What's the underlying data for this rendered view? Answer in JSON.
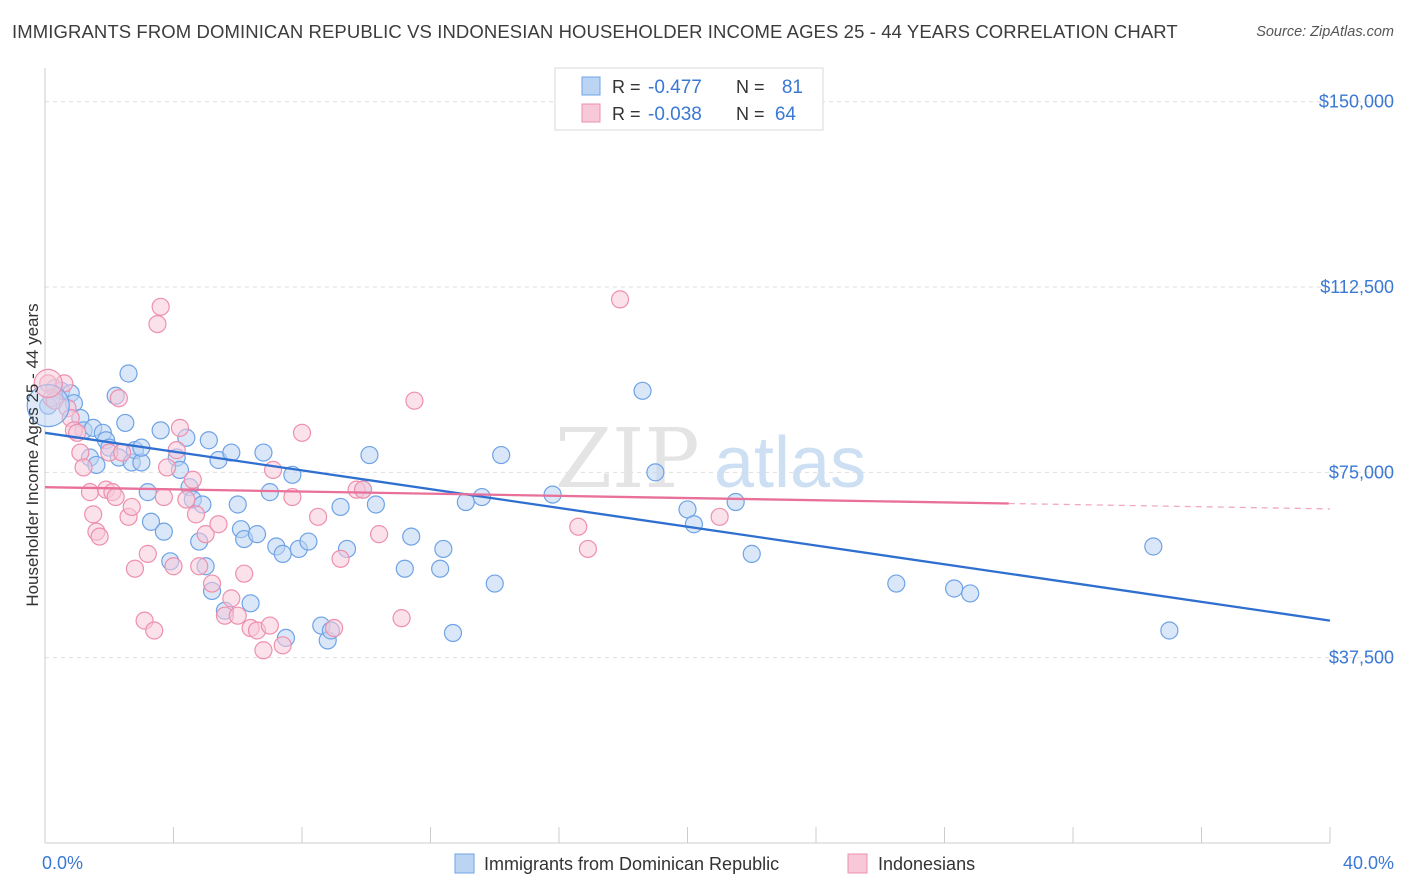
{
  "title": "IMMIGRANTS FROM DOMINICAN REPUBLIC VS INDONESIAN HOUSEHOLDER INCOME AGES 25 - 44 YEARS CORRELATION CHART",
  "source": "Source: ZipAtlas.com",
  "watermark": {
    "zip": "ZIP",
    "atlas": "atlas"
  },
  "colors": {
    "blue": "#6fa3e6",
    "blue_fill": "#bcd4f3",
    "blue_line": "#2f6fd0",
    "pink": "#ee90ad",
    "pink_fill": "#f7c9d8",
    "pink_line": "#e8709a",
    "tick_text": "#3a78d4"
  },
  "stats_box": {
    "rows": [
      {
        "r_label": "R =",
        "r_value": "-0.477",
        "n_label": "N =",
        "n_value": "81"
      },
      {
        "r_label": "R =",
        "r_value": "-0.038",
        "n_label": "N =",
        "n_value": "64"
      }
    ]
  },
  "chart_data": {
    "type": "scatter",
    "title": "IMMIGRANTS FROM DOMINICAN REPUBLIC VS INDONESIAN HOUSEHOLDER INCOME AGES 25 - 44 YEARS CORRELATION CHART",
    "xlabel": "",
    "ylabel": "Householder Income Ages 25 - 44 years",
    "xlim": [
      0,
      40
    ],
    "ylim": [
      0,
      155000
    ],
    "x_tick_labels": [
      "0.0%",
      "40.0%"
    ],
    "y_ticks": [
      37500,
      75000,
      112500,
      150000
    ],
    "y_tick_labels": [
      "$37,500",
      "$75,000",
      "$112,500",
      "$150,000"
    ],
    "grid": true,
    "legend_position": "bottom-center",
    "series": [
      {
        "name": "Immigrants from Dominican Republic",
        "color": "#6fa3e6",
        "trend": {
          "x": [
            0,
            40
          ],
          "y": [
            83000,
            45000
          ]
        },
        "points": [
          [
            0.1,
            88500
          ],
          [
            0.3,
            92000
          ],
          [
            0.5,
            91500
          ],
          [
            0.8,
            91000
          ],
          [
            0.9,
            89000
          ],
          [
            1.1,
            86000
          ],
          [
            1.2,
            83500
          ],
          [
            1.4,
            78000
          ],
          [
            1.5,
            84000
          ],
          [
            1.6,
            76500
          ],
          [
            1.8,
            83000
          ],
          [
            1.9,
            81500
          ],
          [
            2.0,
            80000
          ],
          [
            2.2,
            90500
          ],
          [
            2.3,
            78000
          ],
          [
            2.5,
            85000
          ],
          [
            2.6,
            95000
          ],
          [
            2.7,
            77000
          ],
          [
            2.8,
            79500
          ],
          [
            3.0,
            77000
          ],
          [
            3.0,
            80000
          ],
          [
            3.2,
            71000
          ],
          [
            3.3,
            65000
          ],
          [
            3.6,
            83500
          ],
          [
            3.7,
            63000
          ],
          [
            3.9,
            57000
          ],
          [
            4.1,
            78000
          ],
          [
            4.2,
            75500
          ],
          [
            4.4,
            82000
          ],
          [
            4.5,
            72000
          ],
          [
            4.6,
            69500
          ],
          [
            4.8,
            61000
          ],
          [
            4.9,
            68500
          ],
          [
            5.0,
            56000
          ],
          [
            5.1,
            81500
          ],
          [
            5.2,
            51000
          ],
          [
            5.4,
            77500
          ],
          [
            5.6,
            47000
          ],
          [
            5.8,
            79000
          ],
          [
            6.0,
            68500
          ],
          [
            6.1,
            63500
          ],
          [
            6.2,
            61500
          ],
          [
            6.4,
            48500
          ],
          [
            6.6,
            62500
          ],
          [
            6.8,
            79000
          ],
          [
            7.0,
            71000
          ],
          [
            7.2,
            60000
          ],
          [
            7.4,
            58500
          ],
          [
            7.5,
            41500
          ],
          [
            7.7,
            74500
          ],
          [
            7.9,
            59500
          ],
          [
            8.2,
            61000
          ],
          [
            8.6,
            44000
          ],
          [
            8.8,
            41000
          ],
          [
            8.9,
            43000
          ],
          [
            9.2,
            68000
          ],
          [
            9.4,
            59500
          ],
          [
            9.9,
            71500
          ],
          [
            10.1,
            78500
          ],
          [
            10.3,
            68500
          ],
          [
            11.2,
            55500
          ],
          [
            11.4,
            62000
          ],
          [
            12.3,
            55500
          ],
          [
            12.4,
            59500
          ],
          [
            12.7,
            42500
          ],
          [
            13.1,
            69000
          ],
          [
            13.6,
            70000
          ],
          [
            14.0,
            52500
          ],
          [
            14.2,
            78500
          ],
          [
            15.8,
            70500
          ],
          [
            18.6,
            91500
          ],
          [
            19.0,
            75000
          ],
          [
            20.0,
            67500
          ],
          [
            20.2,
            64500
          ],
          [
            21.5,
            69000
          ],
          [
            22.0,
            58500
          ],
          [
            26.5,
            52500
          ],
          [
            28.3,
            51500
          ],
          [
            28.8,
            50500
          ],
          [
            34.5,
            60000
          ],
          [
            35.0,
            43000
          ]
        ]
      },
      {
        "name": "Indonesians",
        "color": "#ee90ad",
        "trend": {
          "x": [
            0,
            30
          ],
          "y": [
            72000,
            68700
          ],
          "dash_to": [
            40,
            67600
          ]
        },
        "points": [
          [
            0.1,
            93000
          ],
          [
            0.2,
            90000
          ],
          [
            0.3,
            89500
          ],
          [
            0.6,
            93000
          ],
          [
            0.7,
            88000
          ],
          [
            0.8,
            86000
          ],
          [
            0.9,
            83500
          ],
          [
            1.0,
            83000
          ],
          [
            1.1,
            79000
          ],
          [
            1.2,
            76000
          ],
          [
            1.4,
            71000
          ],
          [
            1.5,
            66500
          ],
          [
            1.6,
            63000
          ],
          [
            1.7,
            62000
          ],
          [
            1.9,
            71500
          ],
          [
            2.0,
            79000
          ],
          [
            2.1,
            71000
          ],
          [
            2.2,
            70000
          ],
          [
            2.3,
            90000
          ],
          [
            2.4,
            79000
          ],
          [
            2.6,
            66000
          ],
          [
            2.7,
            68000
          ],
          [
            2.8,
            55500
          ],
          [
            3.1,
            45000
          ],
          [
            3.2,
            58500
          ],
          [
            3.4,
            43000
          ],
          [
            3.5,
            105000
          ],
          [
            3.6,
            108500
          ],
          [
            3.7,
            70000
          ],
          [
            3.8,
            76000
          ],
          [
            4.0,
            56000
          ],
          [
            4.1,
            79500
          ],
          [
            4.2,
            84000
          ],
          [
            4.4,
            69500
          ],
          [
            4.6,
            73500
          ],
          [
            4.7,
            66500
          ],
          [
            4.8,
            56000
          ],
          [
            5.0,
            62500
          ],
          [
            5.2,
            52500
          ],
          [
            5.4,
            64500
          ],
          [
            5.6,
            46000
          ],
          [
            5.8,
            49500
          ],
          [
            6.0,
            46000
          ],
          [
            6.2,
            54500
          ],
          [
            6.4,
            43500
          ],
          [
            6.6,
            43000
          ],
          [
            6.8,
            39000
          ],
          [
            7.0,
            44000
          ],
          [
            7.1,
            75500
          ],
          [
            7.4,
            40000
          ],
          [
            7.7,
            70000
          ],
          [
            8.0,
            83000
          ],
          [
            8.5,
            66000
          ],
          [
            9.0,
            43500
          ],
          [
            9.2,
            57500
          ],
          [
            9.7,
            71500
          ],
          [
            9.9,
            71500
          ],
          [
            10.4,
            62500
          ],
          [
            11.1,
            45500
          ],
          [
            11.5,
            89500
          ],
          [
            16.6,
            64000
          ],
          [
            16.9,
            59500
          ],
          [
            17.9,
            110000
          ],
          [
            21.0,
            66000
          ]
        ]
      }
    ]
  },
  "legend": {
    "items": [
      {
        "label": "Immigrants from Dominican Republic",
        "color": "#6fa3e6"
      },
      {
        "label": "Indonesians",
        "color": "#ee90ad"
      }
    ]
  }
}
